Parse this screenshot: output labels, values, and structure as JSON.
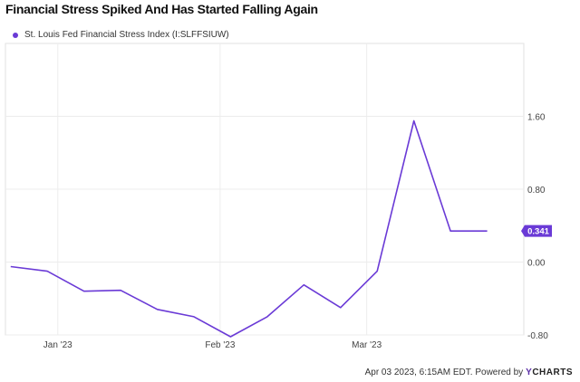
{
  "chart_data": {
    "type": "line",
    "title": "Financial Stress Spiked And Has Started Falling Again",
    "series": [
      {
        "name": "St. Louis Fed Financial Stress Index (I:SLFFSIUW)",
        "color": "#6a3ad6",
        "x": [
          "2022-12-23",
          "2022-12-30",
          "2023-01-06",
          "2023-01-13",
          "2023-01-20",
          "2023-01-27",
          "2023-02-03",
          "2023-02-10",
          "2023-02-17",
          "2023-02-24",
          "2023-03-03",
          "2023-03-10",
          "2023-03-17",
          "2023-03-24"
        ],
        "values": [
          -0.05,
          -0.1,
          -0.32,
          -0.31,
          -0.52,
          -0.6,
          -0.82,
          -0.6,
          -0.25,
          -0.5,
          -0.1,
          1.55,
          0.341,
          0.341
        ],
        "last_value_label": "0.341"
      }
    ],
    "x_ticks": [
      {
        "date": "2023-01-01",
        "label": "Jan '23"
      },
      {
        "date": "2023-02-01",
        "label": "Feb '23"
      },
      {
        "date": "2023-03-01",
        "label": "Mar '23"
      }
    ],
    "y_ticks": [
      {
        "value": 1.6,
        "label": "1.60"
      },
      {
        "value": 0.8,
        "label": "0.80"
      },
      {
        "value": 0.0,
        "label": "0.00"
      },
      {
        "value": -0.8,
        "label": "-0.80"
      }
    ],
    "xlim": [
      "2022-12-22",
      "2023-03-31"
    ],
    "ylim": [
      -0.8,
      2.4
    ],
    "grid": true,
    "legend_position": "top-left"
  },
  "footer": {
    "timestamp": "Apr 03 2023, 6:15AM EDT.",
    "powered_by": "Powered by",
    "brand_y": "Y",
    "brand_rest": "CHARTS"
  }
}
